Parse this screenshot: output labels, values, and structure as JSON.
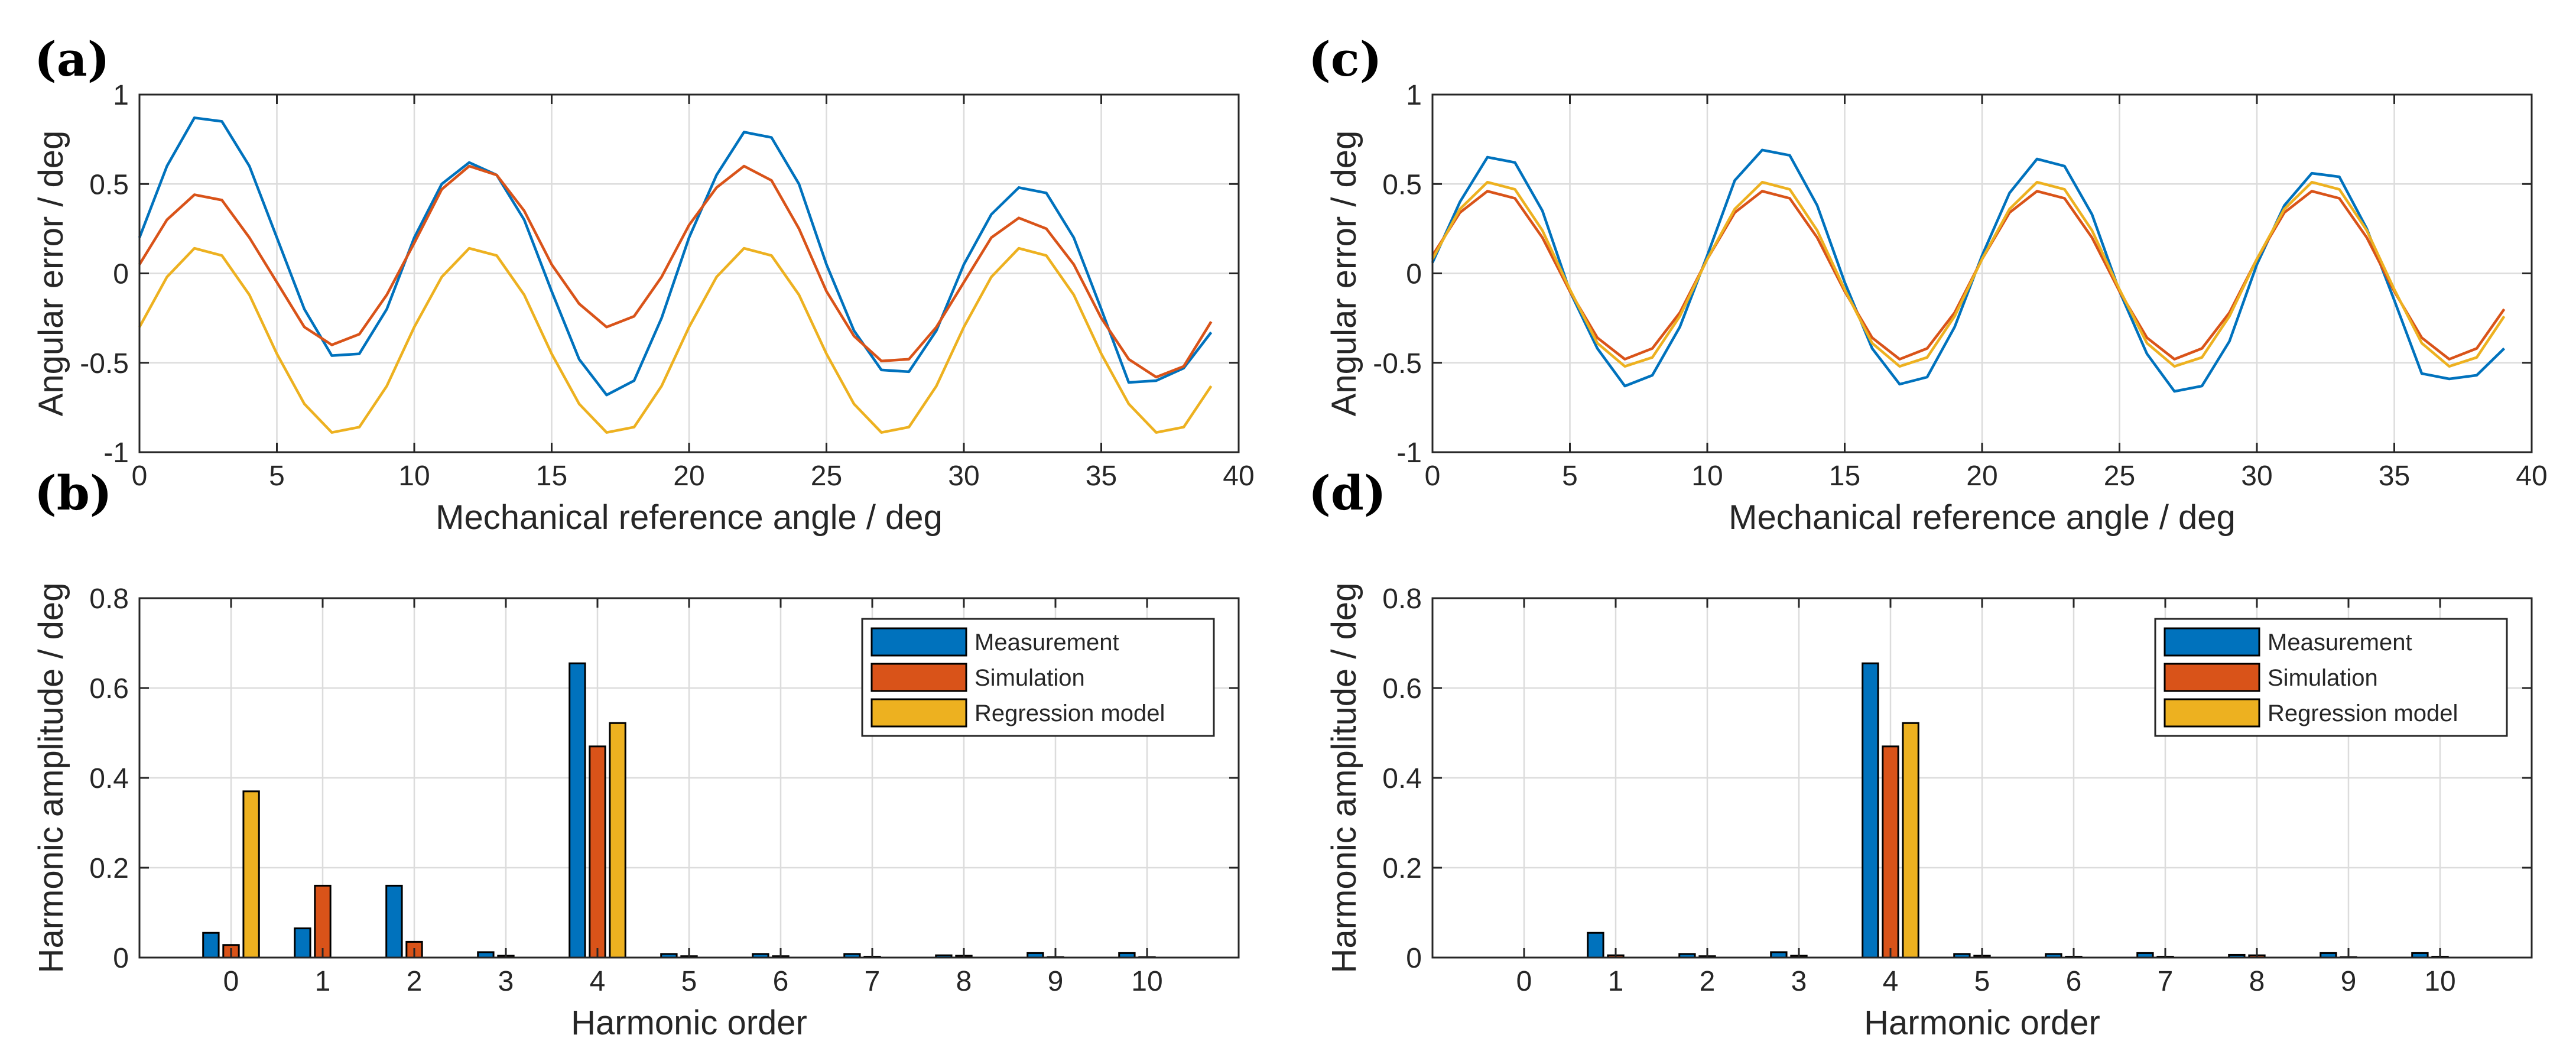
{
  "chart_data": [
    {
      "panel_label": "(a)",
      "type": "line",
      "xlabel": "Mechanical reference angle / deg",
      "ylabel": "Angular error / deg",
      "xlim": [
        0,
        40
      ],
      "ylim": [
        -1,
        1
      ],
      "xticks": [
        "0",
        "5",
        "10",
        "15",
        "20",
        "25",
        "30",
        "35",
        "40"
      ],
      "yticks": [
        "-1",
        "-0.5",
        "0",
        "0.5",
        "1"
      ],
      "grid": true,
      "x": [
        0,
        1,
        2,
        3,
        4,
        5,
        6,
        7,
        8,
        9,
        10,
        11,
        12,
        13,
        14,
        15,
        16,
        17,
        18,
        19,
        20,
        21,
        22,
        23,
        24,
        25,
        26,
        27,
        28,
        29,
        30,
        31,
        32,
        33,
        34,
        35,
        36,
        37,
        38,
        39
      ],
      "series": [
        {
          "name": "Measurement",
          "color": "#0072BD",
          "values": [
            0.2,
            0.6,
            0.87,
            0.85,
            0.6,
            0.2,
            -0.2,
            -0.46,
            -0.45,
            -0.2,
            0.2,
            0.5,
            0.62,
            0.55,
            0.3,
            -0.1,
            -0.48,
            -0.68,
            -0.6,
            -0.25,
            0.2,
            0.55,
            0.79,
            0.76,
            0.5,
            0.05,
            -0.32,
            -0.54,
            -0.55,
            -0.32,
            0.05,
            0.33,
            0.48,
            0.45,
            0.2,
            -0.2,
            -0.61,
            -0.6,
            -0.53,
            -0.33
          ]
        },
        {
          "name": "Simulation",
          "color": "#D95319",
          "values": [
            0.05,
            0.3,
            0.44,
            0.41,
            0.2,
            -0.05,
            -0.3,
            -0.4,
            -0.34,
            -0.12,
            0.17,
            0.47,
            0.6,
            0.55,
            0.35,
            0.05,
            -0.17,
            -0.3,
            -0.24,
            -0.02,
            0.27,
            0.48,
            0.6,
            0.52,
            0.25,
            -0.1,
            -0.35,
            -0.49,
            -0.48,
            -0.3,
            -0.05,
            0.2,
            0.31,
            0.25,
            0.05,
            -0.25,
            -0.48,
            -0.58,
            -0.52,
            -0.27
          ]
        },
        {
          "name": "Regression model",
          "color": "#EDB120",
          "values": [
            -0.3,
            -0.02,
            0.14,
            0.1,
            -0.12,
            -0.45,
            -0.73,
            -0.89,
            -0.86,
            -0.63,
            -0.3,
            -0.02,
            0.14,
            0.1,
            -0.12,
            -0.45,
            -0.73,
            -0.89,
            -0.86,
            -0.63,
            -0.3,
            -0.02,
            0.14,
            0.1,
            -0.12,
            -0.45,
            -0.73,
            -0.89,
            -0.86,
            -0.63,
            -0.3,
            -0.02,
            0.14,
            0.1,
            -0.12,
            -0.45,
            -0.73,
            -0.89,
            -0.86,
            -0.63
          ]
        }
      ]
    },
    {
      "panel_label": "(b)",
      "type": "bar",
      "xlabel": "Harmonic order",
      "ylabel": "Harmonic amplitude / deg",
      "ylim": [
        0,
        0.8
      ],
      "yticks": [
        "0",
        "0.2",
        "0.4",
        "0.6",
        "0.8"
      ],
      "categories": [
        "0",
        "1",
        "2",
        "3",
        "4",
        "5",
        "6",
        "7",
        "8",
        "9",
        "10"
      ],
      "grid": true,
      "legend_position": "top-right",
      "series": [
        {
          "name": "Measurement",
          "color": "#0072BD",
          "values": [
            0.055,
            0.065,
            0.16,
            0.012,
            0.655,
            0.008,
            0.008,
            0.008,
            0.005,
            0.01,
            0.01
          ]
        },
        {
          "name": "Simulation",
          "color": "#D95319",
          "values": [
            0.028,
            0.16,
            0.035,
            0.004,
            0.47,
            0.003,
            0.003,
            0.002,
            0.004,
            0.001,
            0.001
          ]
        },
        {
          "name": "Regression model",
          "color": "#EDB120",
          "values": [
            0.37,
            0,
            0,
            0,
            0.522,
            0,
            0,
            0,
            0,
            0,
            0
          ]
        }
      ]
    },
    {
      "panel_label": "(c)",
      "type": "line",
      "xlabel": "Mechanical reference angle / deg",
      "ylabel": "Angular error / deg",
      "xlim": [
        0,
        40
      ],
      "ylim": [
        -1,
        1
      ],
      "xticks": [
        "0",
        "5",
        "10",
        "15",
        "20",
        "25",
        "30",
        "35",
        "40"
      ],
      "yticks": [
        "-1",
        "-0.5",
        "0",
        "0.5",
        "1"
      ],
      "grid": true,
      "x": [
        0,
        1,
        2,
        3,
        4,
        5,
        6,
        7,
        8,
        9,
        10,
        11,
        12,
        13,
        14,
        15,
        16,
        17,
        18,
        19,
        20,
        21,
        22,
        23,
        24,
        25,
        26,
        27,
        28,
        29,
        30,
        31,
        32,
        33,
        34,
        35,
        36,
        37,
        38,
        39
      ],
      "series": [
        {
          "name": "Measurement",
          "color": "#0072BD",
          "values": [
            0.06,
            0.4,
            0.65,
            0.62,
            0.35,
            -0.1,
            -0.42,
            -0.63,
            -0.57,
            -0.3,
            0.1,
            0.52,
            0.69,
            0.66,
            0.38,
            -0.05,
            -0.42,
            -0.62,
            -0.58,
            -0.3,
            0.1,
            0.45,
            0.64,
            0.6,
            0.33,
            -0.1,
            -0.45,
            -0.66,
            -0.63,
            -0.38,
            0.05,
            0.38,
            0.56,
            0.54,
            0.25,
            -0.15,
            -0.56,
            -0.59,
            -0.57,
            -0.42
          ]
        },
        {
          "name": "Simulation",
          "color": "#D95319",
          "values": [
            0.1,
            0.34,
            0.46,
            0.42,
            0.2,
            -0.1,
            -0.36,
            -0.48,
            -0.42,
            -0.22,
            0.08,
            0.34,
            0.46,
            0.42,
            0.2,
            -0.1,
            -0.36,
            -0.48,
            -0.42,
            -0.22,
            0.08,
            0.34,
            0.46,
            0.42,
            0.2,
            -0.1,
            -0.36,
            -0.48,
            -0.42,
            -0.22,
            0.08,
            0.34,
            0.46,
            0.42,
            0.2,
            -0.1,
            -0.36,
            -0.48,
            -0.42,
            -0.2
          ]
        },
        {
          "name": "Regression model",
          "color": "#EDB120",
          "values": [
            0.08,
            0.36,
            0.51,
            0.47,
            0.24,
            -0.09,
            -0.39,
            -0.52,
            -0.47,
            -0.24,
            0.08,
            0.36,
            0.51,
            0.47,
            0.24,
            -0.09,
            -0.39,
            -0.52,
            -0.47,
            -0.24,
            0.08,
            0.36,
            0.51,
            0.47,
            0.24,
            -0.09,
            -0.39,
            -0.52,
            -0.47,
            -0.24,
            0.08,
            0.36,
            0.51,
            0.47,
            0.24,
            -0.09,
            -0.39,
            -0.52,
            -0.47,
            -0.24
          ]
        }
      ]
    },
    {
      "panel_label": "(d)",
      "type": "bar",
      "xlabel": "Harmonic order",
      "ylabel": "Harmonic amplitude / deg",
      "ylim": [
        0,
        0.8
      ],
      "yticks": [
        "0",
        "0.2",
        "0.4",
        "0.6",
        "0.8"
      ],
      "categories": [
        "0",
        "1",
        "2",
        "3",
        "4",
        "5",
        "6",
        "7",
        "8",
        "9",
        "10"
      ],
      "grid": true,
      "legend_position": "top-right",
      "series": [
        {
          "name": "Measurement",
          "color": "#0072BD",
          "values": [
            0,
            0.055,
            0.008,
            0.012,
            0.655,
            0.008,
            0.008,
            0.01,
            0.006,
            0.01,
            0.01
          ]
        },
        {
          "name": "Simulation",
          "color": "#D95319",
          "values": [
            0,
            0.005,
            0.003,
            0.004,
            0.47,
            0.004,
            0.002,
            0.002,
            0.005,
            0.001,
            0.002
          ]
        },
        {
          "name": "Regression model",
          "color": "#EDB120",
          "values": [
            0,
            0,
            0,
            0,
            0.522,
            0,
            0,
            0,
            0,
            0,
            0
          ]
        }
      ]
    }
  ]
}
